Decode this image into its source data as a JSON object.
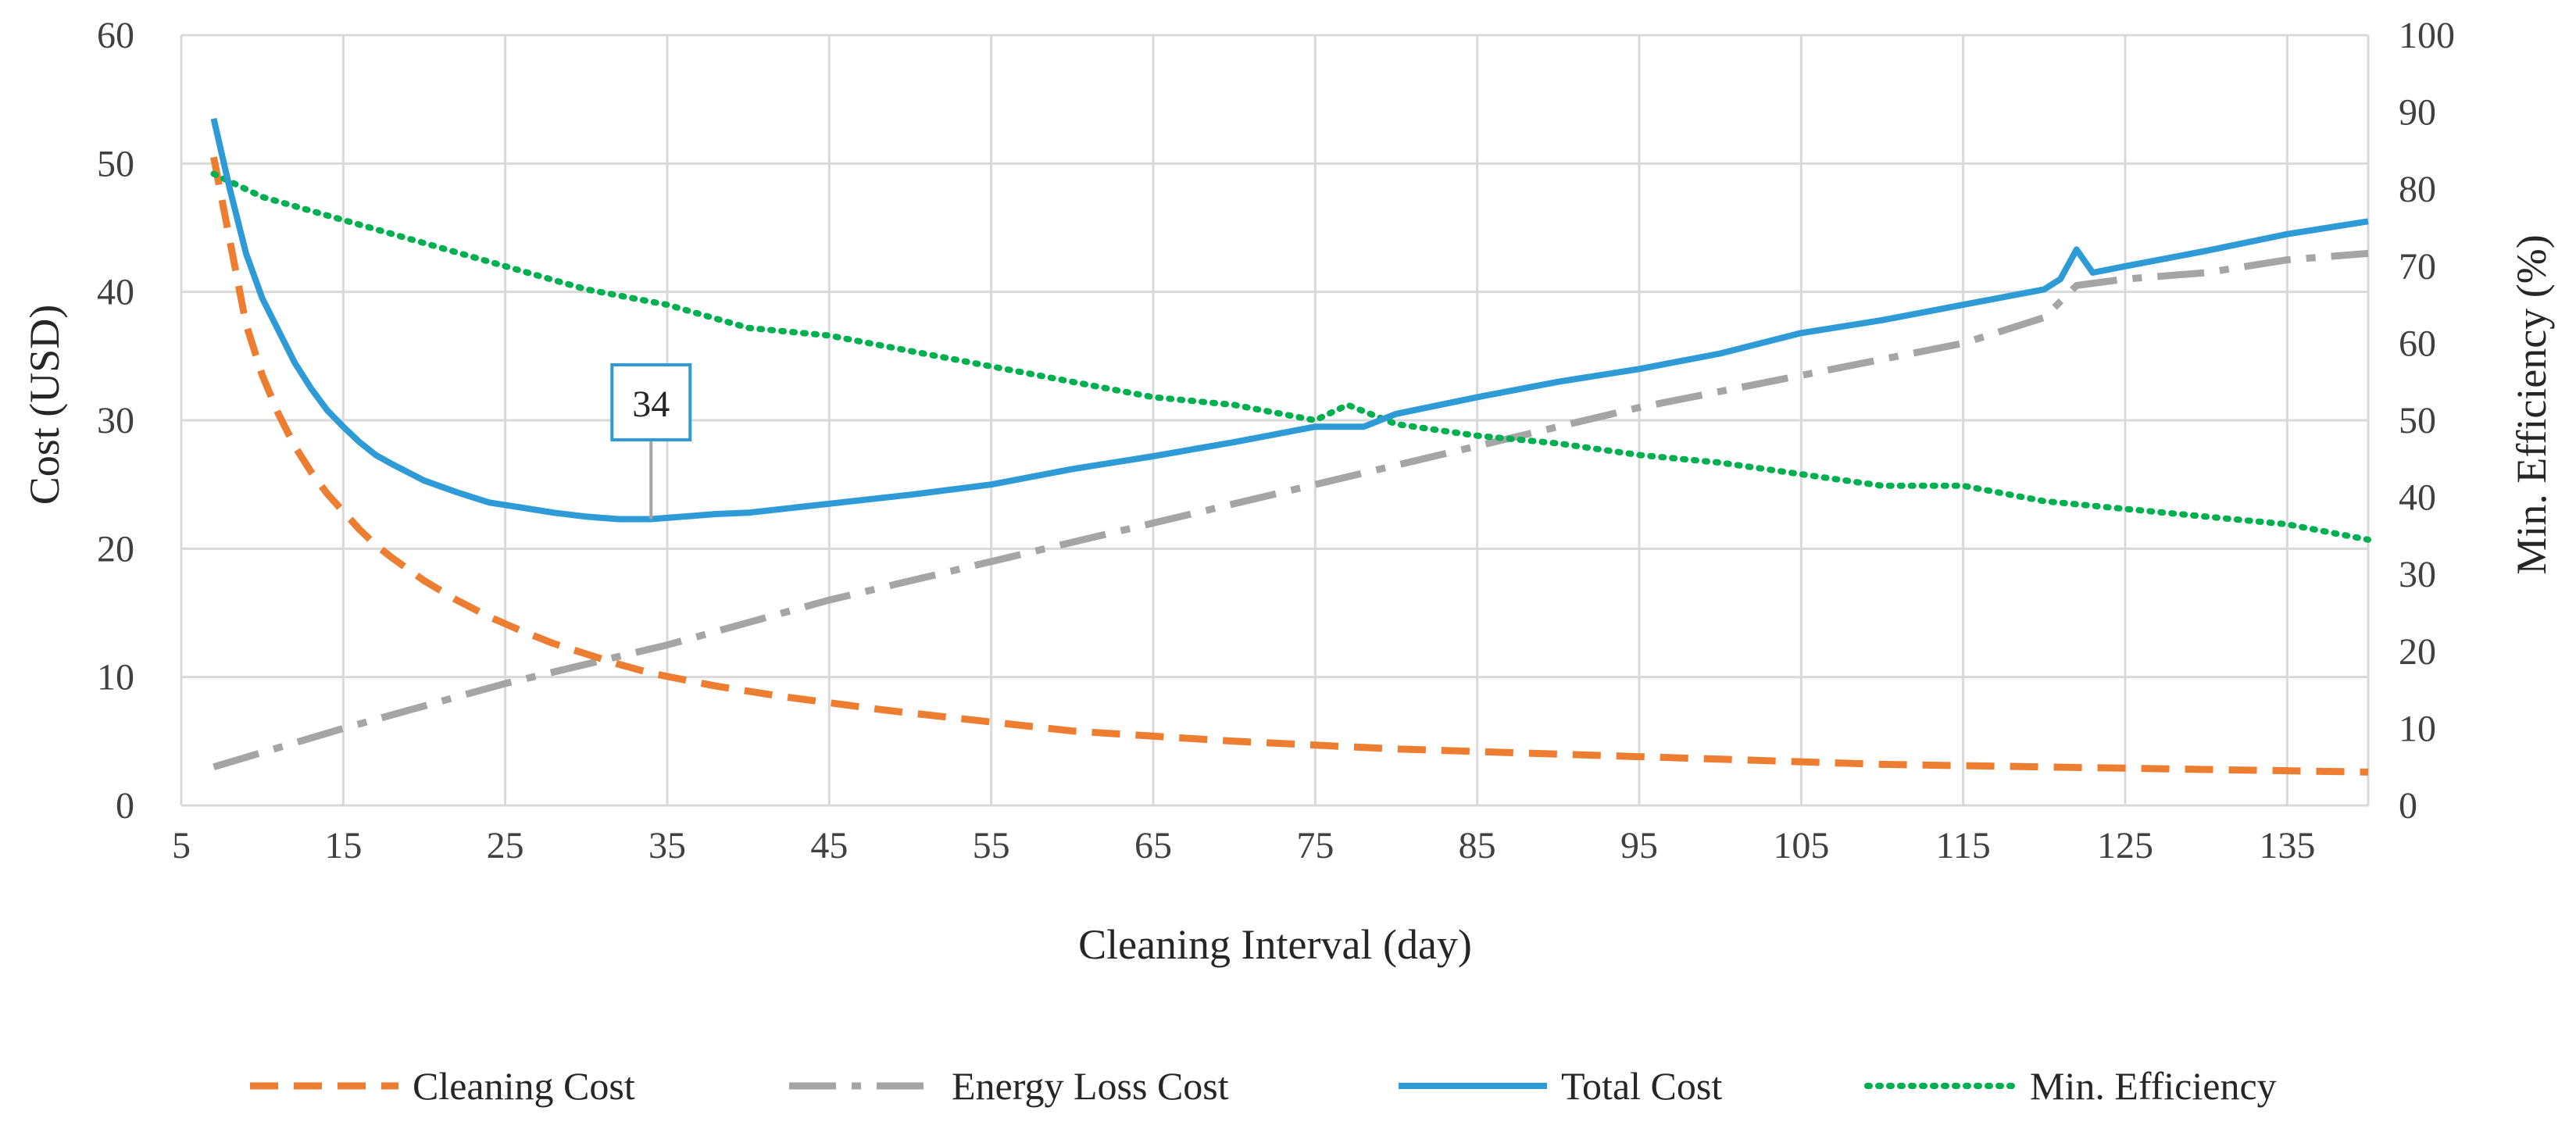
{
  "chart_data": {
    "type": "line",
    "title": "",
    "xlabel": "Cleaning Interval (day)",
    "ylabel": "Cost (USD)",
    "y2label": "Min. Efficiency (%)",
    "xlim": [
      5,
      140
    ],
    "ylim": [
      0,
      60
    ],
    "y2lim": [
      0,
      100
    ],
    "xticks": [
      "5",
      "15",
      "25",
      "35",
      "45",
      "55",
      "65",
      "75",
      "85",
      "95",
      "105",
      "115",
      "125",
      "135"
    ],
    "yticks": [
      "0",
      "10",
      "20",
      "30",
      "40",
      "50",
      "60"
    ],
    "y2ticks": [
      "0",
      "10",
      "20",
      "30",
      "40",
      "50",
      "60",
      "70",
      "80",
      "90",
      "100"
    ],
    "grid": true,
    "legend_position": "bottom",
    "annotation": {
      "label": "34",
      "x": 34,
      "y": 22.3
    },
    "series": [
      {
        "name": "Cleaning Cost",
        "axis": "left",
        "style": "dashed",
        "color": "#ED7D31",
        "x": [
          7,
          8,
          9,
          10,
          11,
          12,
          13,
          14,
          15,
          16,
          17,
          18,
          20,
          22,
          24,
          26,
          28,
          30,
          32,
          34,
          36,
          38,
          40,
          42,
          45,
          48,
          50,
          55,
          60,
          65,
          70,
          75,
          80,
          85,
          90,
          95,
          100,
          105,
          110,
          115,
          120,
          125,
          130,
          135,
          140
        ],
        "values": [
          50.5,
          44,
          37.5,
          33.5,
          30.5,
          28,
          26,
          24.3,
          22.9,
          21.5,
          20.3,
          19.3,
          17.5,
          16,
          14.7,
          13.6,
          12.6,
          11.8,
          11.0,
          10.3,
          9.8,
          9.3,
          8.9,
          8.5,
          8.0,
          7.5,
          7.2,
          6.5,
          5.8,
          5.4,
          5.0,
          4.7,
          4.4,
          4.2,
          4.0,
          3.8,
          3.6,
          3.4,
          3.2,
          3.1,
          3.0,
          2.9,
          2.8,
          2.7,
          2.6
        ]
      },
      {
        "name": "Energy Loss Cost",
        "axis": "left",
        "style": "dashdot",
        "color": "#A5A5A5",
        "x": [
          7,
          15,
          25,
          35,
          45,
          55,
          65,
          75,
          85,
          95,
          105,
          115,
          120,
          122,
          125,
          130,
          135,
          140
        ],
        "values": [
          3.0,
          6.0,
          9.5,
          12.5,
          16.0,
          19.0,
          22.0,
          25.0,
          28.0,
          31.0,
          33.5,
          36.0,
          38.0,
          40.5,
          41.0,
          41.5,
          42.5,
          43.0
        ]
      },
      {
        "name": "Total Cost",
        "axis": "left",
        "style": "solid",
        "color": "#2E9BD6",
        "x": [
          7,
          8,
          9,
          10,
          11,
          12,
          13,
          14,
          15,
          16,
          17,
          18,
          20,
          22,
          24,
          26,
          28,
          30,
          32,
          34,
          36,
          38,
          40,
          45,
          50,
          55,
          60,
          65,
          70,
          75,
          78,
          80,
          85,
          90,
          95,
          100,
          105,
          110,
          115,
          120,
          121,
          122,
          123,
          125,
          130,
          135,
          140
        ],
        "values": [
          53.5,
          48,
          43,
          39.5,
          37,
          34.5,
          32.5,
          30.8,
          29.5,
          28.3,
          27.3,
          26.6,
          25.3,
          24.4,
          23.6,
          23.2,
          22.8,
          22.5,
          22.3,
          22.3,
          22.5,
          22.7,
          22.8,
          23.5,
          24.2,
          25,
          26.2,
          27.2,
          28.3,
          29.5,
          29.5,
          30.5,
          31.8,
          33,
          34,
          35.2,
          36.8,
          37.8,
          39,
          40.2,
          41,
          43.3,
          41.5,
          42,
          43.2,
          44.5,
          45.5
        ]
      },
      {
        "name": "Min. Efficiency",
        "axis": "right",
        "style": "dotted",
        "color": "#00B050",
        "x": [
          7,
          10,
          15,
          20,
          25,
          30,
          35,
          40,
          45,
          50,
          55,
          60,
          65,
          70,
          75,
          77,
          80,
          85,
          90,
          95,
          100,
          105,
          110,
          115,
          120,
          125,
          130,
          135,
          140
        ],
        "values": [
          82,
          79,
          76,
          73,
          70,
          67,
          65,
          62,
          61,
          59,
          57,
          55,
          53,
          52,
          50,
          52,
          49.5,
          48,
          47,
          45.5,
          44.5,
          43,
          41.5,
          41.5,
          39.5,
          38.5,
          37.5,
          36.5,
          34.5
        ]
      }
    ]
  }
}
